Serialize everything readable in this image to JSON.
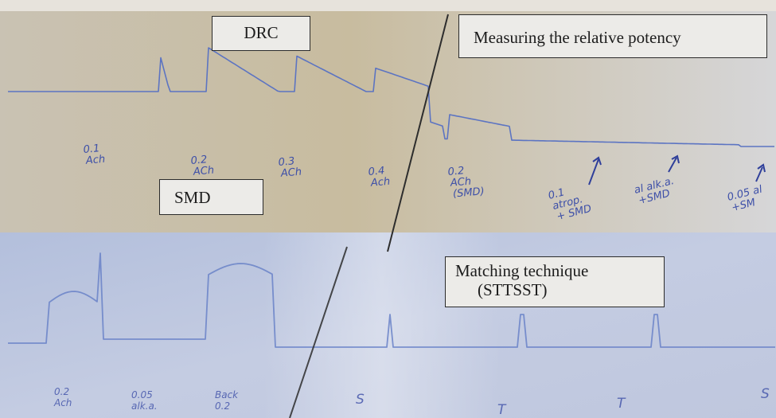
{
  "labels": {
    "drc": "DRC",
    "smd": "SMD",
    "measuring": "Measuring the relative potency",
    "matching_line1": "Matching technique",
    "matching_line2": "(STTSST)"
  },
  "top_trace_annotations": [
    {
      "dose": "0.1",
      "agent": "Ach"
    },
    {
      "dose": "0.2",
      "agent": "ACh"
    },
    {
      "dose": "0.3",
      "agent": "ACh"
    },
    {
      "dose": "0.4",
      "agent": "Ach"
    },
    {
      "dose": "0.2",
      "agent": "ACh",
      "note": "(SMD)"
    },
    {
      "dose": "0.1",
      "agent": "atrop.",
      "note": "+ SMD"
    },
    {
      "dose": "al alk.a.",
      "agent": "+SMD"
    },
    {
      "dose": "0.05 al",
      "agent": "+SM"
    }
  ],
  "bottom_trace_annotations": [
    {
      "text": "0.2",
      "text2": "Ach"
    },
    {
      "text": "0.05",
      "text2": "alk.a."
    },
    {
      "text": "Back",
      "text2": "0.2"
    },
    {
      "text": "S"
    },
    {
      "text": "T"
    },
    {
      "text": "T"
    },
    {
      "text": "S"
    }
  ],
  "colors": {
    "top_paper": "#c9bfa8",
    "bottom_paper": "#b8c3dc",
    "trace": "#5c74c2",
    "ink": "#3d4fa8",
    "box_fill": "#ecebe8"
  }
}
